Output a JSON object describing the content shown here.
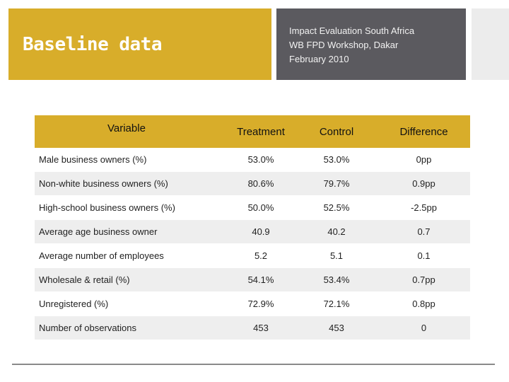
{
  "title": "Baseline data",
  "info": {
    "line1": "Impact Evaluation South Africa",
    "line2": "WB FPD Workshop, Dakar",
    "line3": "February 2010"
  },
  "table": {
    "headers": [
      "Variable",
      "Treatment",
      "Control",
      "Difference"
    ],
    "rows": [
      [
        "Male business owners (%)",
        "53.0%",
        "53.0%",
        "0pp"
      ],
      [
        "Non-white business owners (%)",
        "80.6%",
        "79.7%",
        "0.9pp"
      ],
      [
        "High-school business owners (%)",
        "50.0%",
        "52.5%",
        "-2.5pp"
      ],
      [
        "Average age business owner",
        "40.9",
        "40.2",
        "0.7"
      ],
      [
        "Average number of employees",
        "5.2",
        "5.1",
        "0.1"
      ],
      [
        "Wholesale & retail (%)",
        "54.1%",
        "53.4%",
        "0.7pp"
      ],
      [
        "Unregistered (%)",
        "72.9%",
        "72.1%",
        "0.8pp"
      ],
      [
        "Number of observations",
        "453",
        "453",
        "0"
      ]
    ]
  },
  "colors": {
    "accent": "#d8ad2a",
    "dark_band": "#5b5a5f"
  }
}
